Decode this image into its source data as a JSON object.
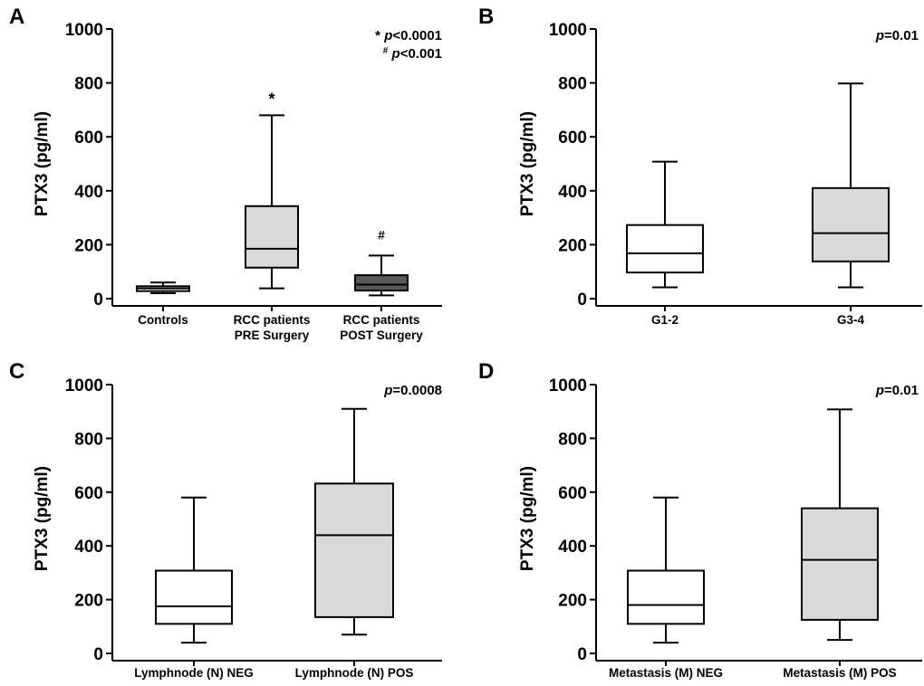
{
  "chart_data": [
    {
      "panel": "A",
      "type": "box",
      "ylabel": "PTX3 (pg/ml)",
      "ylim": [
        0,
        1000
      ],
      "yticks": [
        0,
        200,
        400,
        600,
        800,
        1000
      ],
      "annotations": [
        {
          "marker": "*",
          "p_label": "p",
          "p_value": "<0.0001"
        },
        {
          "marker": "#",
          "p_label": "p",
          "p_value": "<0.001"
        }
      ],
      "groups": [
        {
          "label": [
            "Controls"
          ],
          "min": 20,
          "q1": 28,
          "median": 38,
          "q3": 46,
          "max": 60,
          "fill": "#ffffff",
          "mark": ""
        },
        {
          "label": [
            "RCC patients",
            "PRE Surgery"
          ],
          "min": 38,
          "q1": 115,
          "median": 185,
          "q3": 343,
          "max": 680,
          "fill": "#d9d9d9",
          "mark": "*"
        },
        {
          "label": [
            "RCC patients",
            "POST Surgery"
          ],
          "min": 12,
          "q1": 30,
          "median": 52,
          "q3": 87,
          "max": 160,
          "fill": "#595959",
          "mark": "#"
        }
      ]
    },
    {
      "panel": "B",
      "type": "box",
      "ylabel": "PTX3 (pg/ml)",
      "ylim": [
        0,
        1000
      ],
      "yticks": [
        0,
        200,
        400,
        600,
        800,
        1000
      ],
      "annotations": [
        {
          "marker": "",
          "p_label": "p",
          "p_value": "=0.01"
        }
      ],
      "groups": [
        {
          "label": [
            "G1-2"
          ],
          "min": 42,
          "q1": 97,
          "median": 168,
          "q3": 273,
          "max": 508,
          "fill": "#ffffff",
          "mark": ""
        },
        {
          "label": [
            "G3-4"
          ],
          "min": 42,
          "q1": 138,
          "median": 243,
          "q3": 410,
          "max": 798,
          "fill": "#d9d9d9",
          "mark": ""
        }
      ]
    },
    {
      "panel": "C",
      "type": "box",
      "ylabel": "PTX3 (pg/ml)",
      "ylim": [
        0,
        1000
      ],
      "yticks": [
        0,
        200,
        400,
        600,
        800,
        1000
      ],
      "annotations": [
        {
          "marker": "",
          "p_label": "p",
          "p_value": "=0.0008"
        }
      ],
      "groups": [
        {
          "label": [
            "Lymphnode (N) NEG"
          ],
          "min": 40,
          "q1": 110,
          "median": 175,
          "q3": 308,
          "max": 580,
          "fill": "#ffffff",
          "mark": ""
        },
        {
          "label": [
            "Lymphnode (N) POS"
          ],
          "min": 70,
          "q1": 135,
          "median": 440,
          "q3": 632,
          "max": 910,
          "fill": "#d9d9d9",
          "mark": ""
        }
      ]
    },
    {
      "panel": "D",
      "type": "box",
      "ylabel": "PTX3 (pg/ml)",
      "ylim": [
        0,
        1000
      ],
      "yticks": [
        0,
        200,
        400,
        600,
        800,
        1000
      ],
      "annotations": [
        {
          "marker": "",
          "p_label": "p",
          "p_value": "=0.01"
        }
      ],
      "groups": [
        {
          "label": [
            "Metastasis (M) NEG"
          ],
          "min": 40,
          "q1": 110,
          "median": 180,
          "q3": 308,
          "max": 580,
          "fill": "#ffffff",
          "mark": ""
        },
        {
          "label": [
            "Metastasis (M) POS"
          ],
          "min": 50,
          "q1": 125,
          "median": 348,
          "q3": 540,
          "max": 908,
          "fill": "#d9d9d9",
          "mark": ""
        }
      ]
    }
  ]
}
